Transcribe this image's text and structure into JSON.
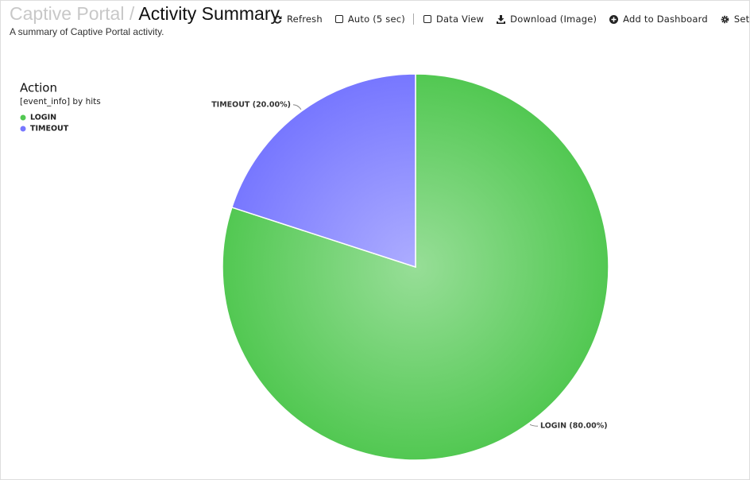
{
  "header": {
    "breadcrumb": "Captive Portal",
    "separator": "/",
    "title": "Activity Summary",
    "description": "A summary of Captive Portal activity."
  },
  "toolbar": {
    "refresh": "Refresh",
    "auto": "Auto (5 sec)",
    "data_view": "Data View",
    "download": "Download (Image)",
    "add_dashboard": "Add to Dashboard",
    "settings": "Settings"
  },
  "chart_data": {
    "type": "pie",
    "legend_title": "Action",
    "legend_subtitle": "[event_info] by hits",
    "legend": "top-left",
    "categories": [
      "LOGIN",
      "TIMEOUT"
    ],
    "values": [
      80,
      20
    ],
    "value_labels": [
      "LOGIN (80.00%)",
      "TIMEOUT (20.00%)"
    ],
    "colors": [
      "#52c852",
      "#7777ff"
    ]
  }
}
